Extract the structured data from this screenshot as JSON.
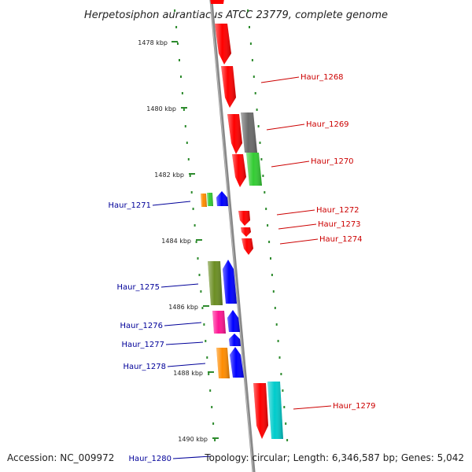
{
  "title": "Herpetosiphon aurantiacus ATCC 23779, complete genome",
  "accession": "Accession: NC_009972",
  "topology": "Topology: circular; Length: 6,346,587 bp; Genes: 5,042",
  "axis_labels": [
    "1478 kbp",
    "1480 kbp",
    "1482 kbp",
    "1484 kbp",
    "1486 kbp",
    "1488 kbp",
    "1490 kbp"
  ],
  "colors": {
    "forward_label": "#cc0000",
    "reverse_label": "#000099",
    "backbone": "#888888",
    "tick": "#2e8b2e"
  },
  "forward_genes": [
    {
      "label": "Haur_1268",
      "color": "#ff0000"
    },
    {
      "label": "Haur_1269",
      "color": "#ff0000"
    },
    {
      "label": "Haur_1270",
      "color": "#ff0000"
    },
    {
      "label": "Haur_1272",
      "color": "#ff0000"
    },
    {
      "label": "Haur_1273",
      "color": "#ff0000"
    },
    {
      "label": "Haur_1274",
      "color": "#ff0000"
    },
    {
      "label": "Haur_1279",
      "color": "#ff0000"
    }
  ],
  "reverse_genes": [
    {
      "label": "Haur_1271",
      "color": "#0000ff"
    },
    {
      "label": "Haur_1275",
      "color": "#0000ff"
    },
    {
      "label": "Haur_1276",
      "color": "#0000ff"
    },
    {
      "label": "Haur_1277",
      "color": "#0000ff"
    },
    {
      "label": "Haur_1278",
      "color": "#0000ff"
    },
    {
      "label": "Haur_1280",
      "color": "#0000ff"
    }
  ],
  "category_colors": [
    "#ff0000",
    "#6b6b6b",
    "#33cc33",
    "#ff8c00",
    "#6b8e23",
    "#0000ff",
    "#ff1493",
    "#00cccc"
  ]
}
